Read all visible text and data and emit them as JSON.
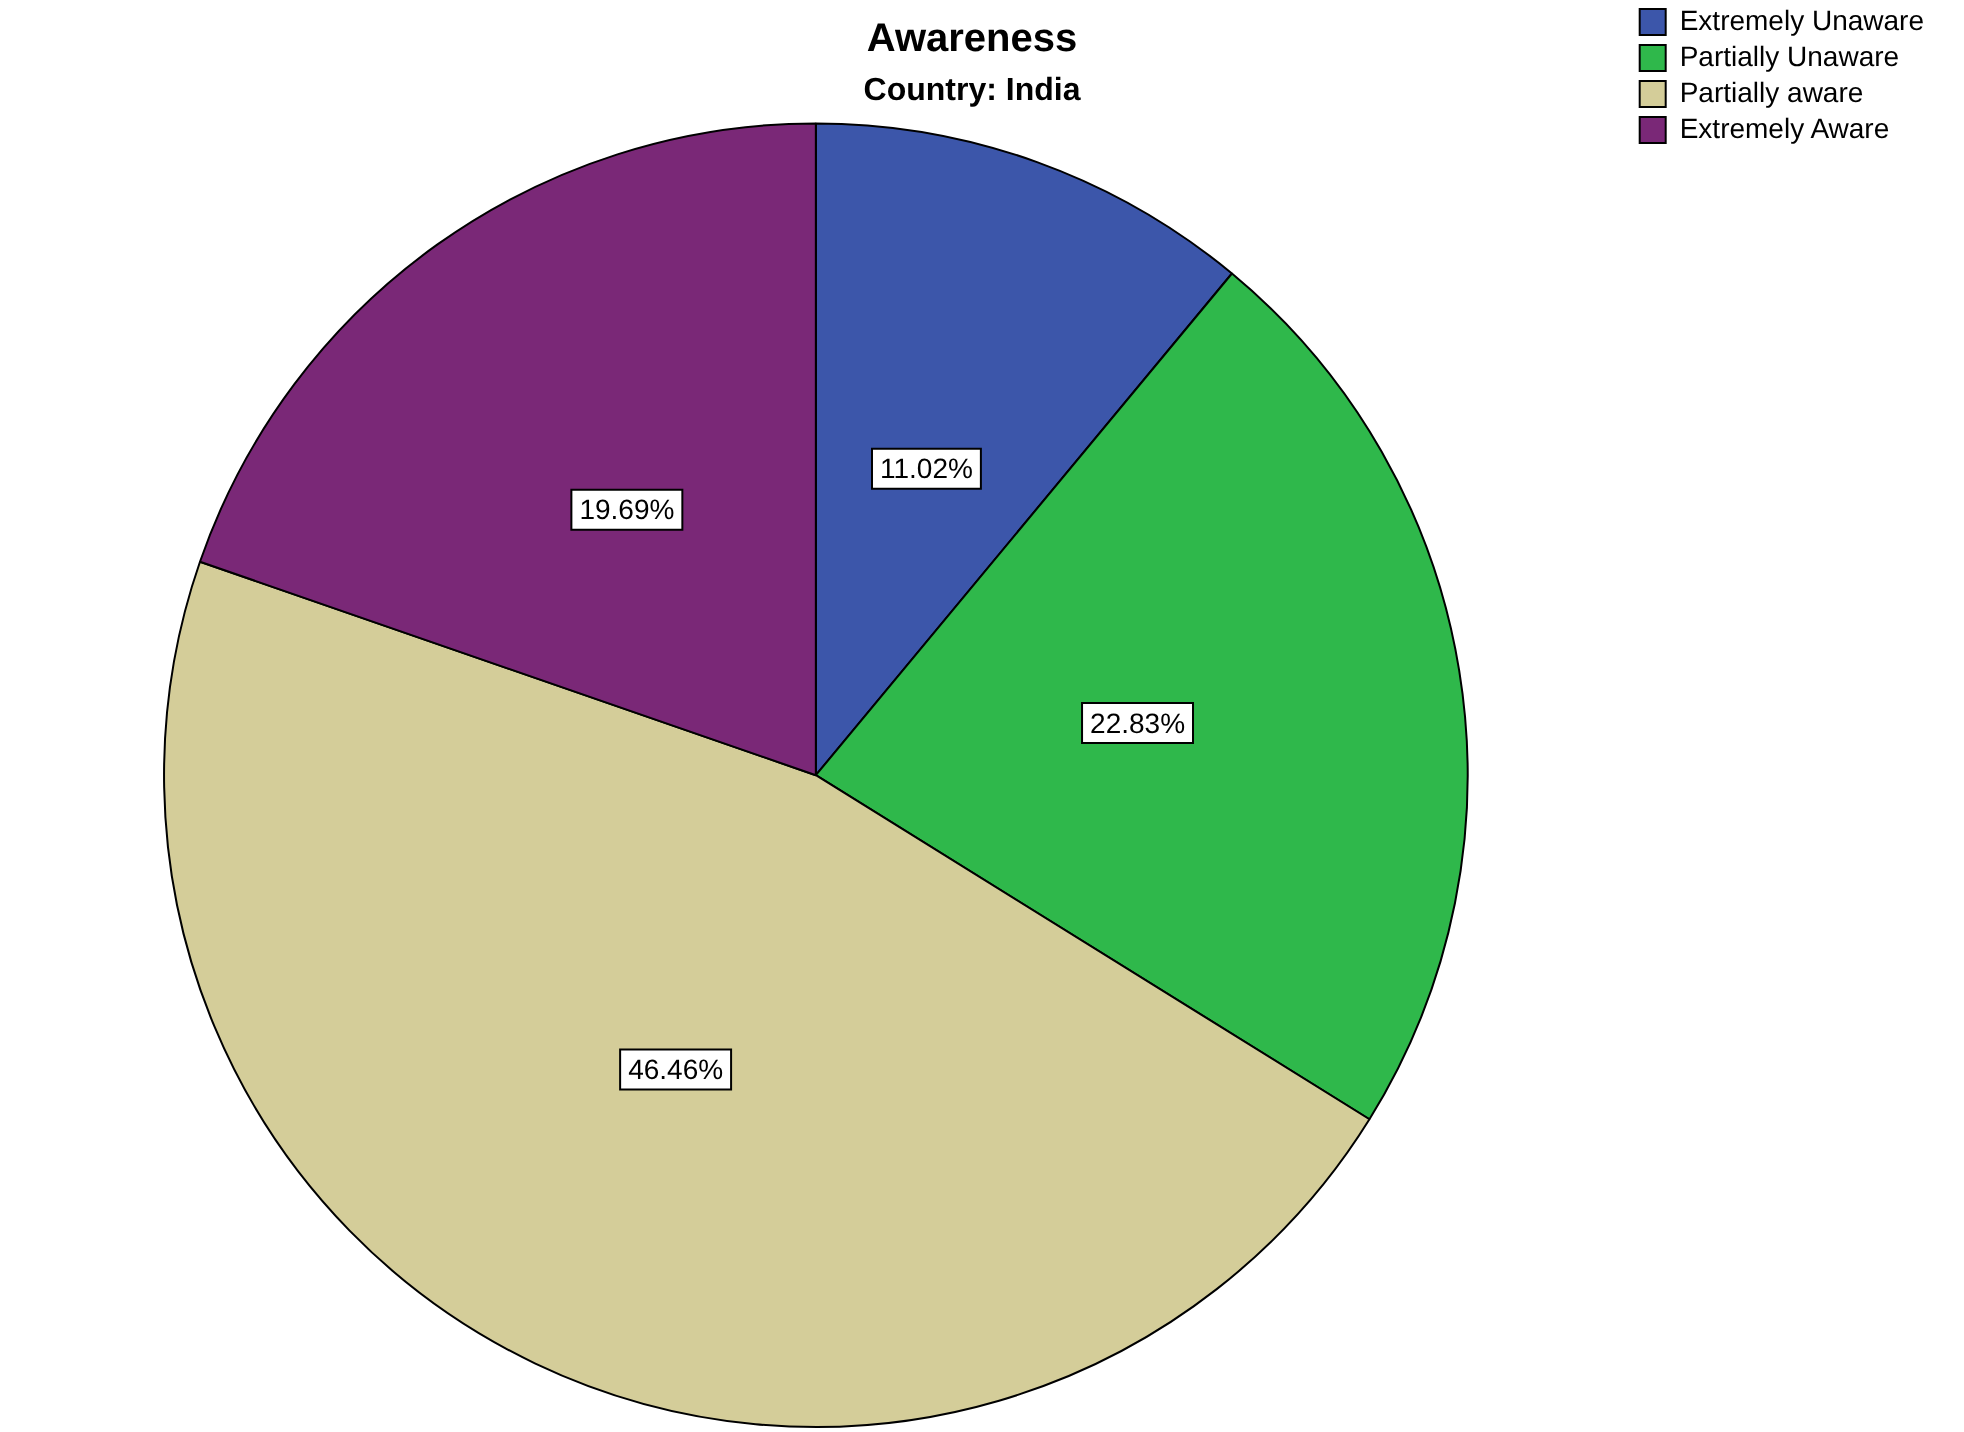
{
  "chart_data": {
    "type": "pie",
    "title": "Awareness",
    "subtitle": "Country: India",
    "categories": [
      "Extremely Unaware",
      "Partially Unaware",
      "Partially aware",
      "Extremely Aware"
    ],
    "values": [
      11.02,
      22.83,
      46.46,
      19.69
    ],
    "value_labels": [
      "11.02%",
      "22.83%",
      "46.46%",
      "19.69%"
    ],
    "colors": [
      "#3c56aa",
      "#2fb84b",
      "#d4cd99",
      "#7a2877"
    ],
    "legend": "top right"
  }
}
